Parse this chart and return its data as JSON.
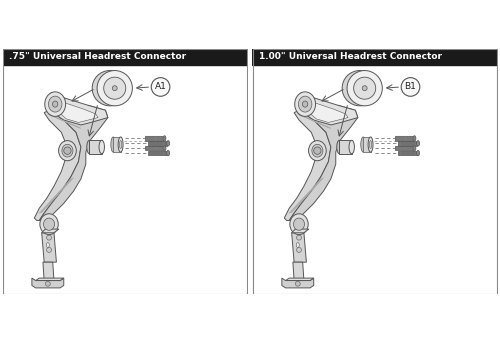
{
  "title_left": ".75\" Universal Headrest Connector",
  "title_right": "1.00\" Universal Headrest Connector",
  "label_left": "A1",
  "label_right": "B1",
  "bg_color": "#ffffff",
  "border_color": "#aaaaaa",
  "title_bg": "#1a1a1a",
  "title_text_color": "#ffffff",
  "edge_color": "#555555",
  "light_gray": "#e8e8e8",
  "mid_gray": "#c8c8c8",
  "dark_gray": "#888888",
  "title_fontsize": 6.5,
  "label_fontsize": 6.5,
  "fig_width": 5.0,
  "fig_height": 3.43,
  "dpi": 100
}
